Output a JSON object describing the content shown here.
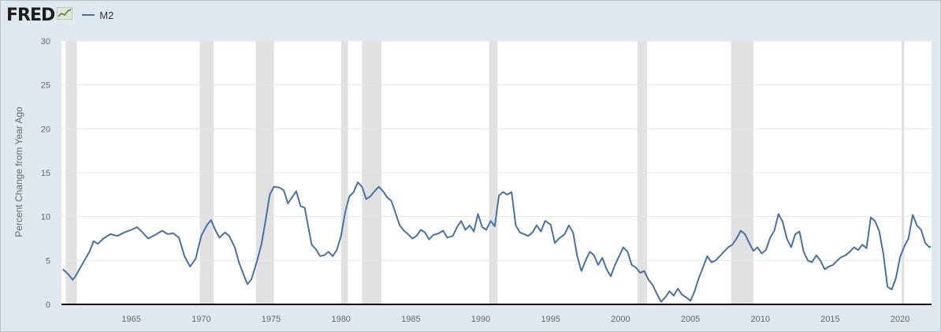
{
  "brand": {
    "logo_text": "FRED"
  },
  "legend": {
    "label": "M2",
    "icon": "trend-chart-icon"
  },
  "colors": {
    "line": "#4572a7",
    "recession": "#e1e1e1",
    "background": "#e1e9f0",
    "plot": "#ffffff"
  },
  "chart_data": {
    "type": "line",
    "title": "",
    "xlabel": "",
    "ylabel": "Percent Change from Year Ago",
    "xlim": [
      1960.0,
      2022.25
    ],
    "ylim": [
      0,
      30
    ],
    "yticks": [
      0,
      5,
      10,
      15,
      20,
      25,
      30
    ],
    "xticks": [
      1965,
      1970,
      1975,
      1980,
      1985,
      1990,
      1995,
      2000,
      2005,
      2010,
      2015,
      2020
    ],
    "grid": "horizontal",
    "legend_position": "top-left",
    "recessions": [
      [
        1960.3,
        1961.1
      ],
      [
        1969.9,
        1970.9
      ],
      [
        1973.9,
        1975.2
      ],
      [
        1980.0,
        1980.5
      ],
      [
        1981.5,
        1982.9
      ],
      [
        1990.6,
        1991.2
      ],
      [
        2001.2,
        2001.9
      ],
      [
        2007.9,
        2009.5
      ],
      [
        2020.1,
        2020.3
      ]
    ],
    "series": [
      {
        "name": "M2",
        "points": [
          [
            1960.1,
            4.0
          ],
          [
            1960.5,
            3.4
          ],
          [
            1960.8,
            2.8
          ],
          [
            1961.0,
            3.2
          ],
          [
            1961.5,
            4.6
          ],
          [
            1962.0,
            6.0
          ],
          [
            1962.3,
            7.2
          ],
          [
            1962.6,
            6.9
          ],
          [
            1963.0,
            7.5
          ],
          [
            1963.5,
            8.0
          ],
          [
            1964.0,
            7.8
          ],
          [
            1964.5,
            8.2
          ],
          [
            1965.0,
            8.5
          ],
          [
            1965.4,
            8.8
          ],
          [
            1965.8,
            8.2
          ],
          [
            1966.2,
            7.5
          ],
          [
            1966.8,
            8.0
          ],
          [
            1967.2,
            8.4
          ],
          [
            1967.6,
            8.0
          ],
          [
            1968.0,
            8.1
          ],
          [
            1968.4,
            7.6
          ],
          [
            1968.8,
            5.5
          ],
          [
            1969.2,
            4.3
          ],
          [
            1969.6,
            5.2
          ],
          [
            1970.0,
            7.8
          ],
          [
            1970.4,
            9.0
          ],
          [
            1970.7,
            9.6
          ],
          [
            1971.0,
            8.5
          ],
          [
            1971.3,
            7.6
          ],
          [
            1971.7,
            8.2
          ],
          [
            1972.0,
            7.8
          ],
          [
            1972.4,
            6.5
          ],
          [
            1972.7,
            4.8
          ],
          [
            1973.0,
            3.5
          ],
          [
            1973.3,
            2.3
          ],
          [
            1973.6,
            2.9
          ],
          [
            1974.0,
            5.0
          ],
          [
            1974.3,
            6.8
          ],
          [
            1974.6,
            9.5
          ],
          [
            1974.9,
            12.5
          ],
          [
            1975.2,
            13.4
          ],
          [
            1975.6,
            13.3
          ],
          [
            1975.9,
            13.0
          ],
          [
            1976.2,
            11.5
          ],
          [
            1976.5,
            12.2
          ],
          [
            1976.8,
            12.9
          ],
          [
            1977.1,
            11.2
          ],
          [
            1977.4,
            11.0
          ],
          [
            1977.7,
            8.5
          ],
          [
            1977.9,
            6.8
          ],
          [
            1978.2,
            6.3
          ],
          [
            1978.5,
            5.5
          ],
          [
            1978.8,
            5.6
          ],
          [
            1979.1,
            6.0
          ],
          [
            1979.4,
            5.5
          ],
          [
            1979.7,
            6.2
          ],
          [
            1980.0,
            7.8
          ],
          [
            1980.3,
            10.5
          ],
          [
            1980.6,
            12.3
          ],
          [
            1980.9,
            12.8
          ],
          [
            1981.2,
            13.9
          ],
          [
            1981.5,
            13.4
          ],
          [
            1981.8,
            12.0
          ],
          [
            1982.1,
            12.3
          ],
          [
            1982.4,
            12.9
          ],
          [
            1982.7,
            13.4
          ],
          [
            1983.0,
            12.9
          ],
          [
            1983.3,
            12.2
          ],
          [
            1983.6,
            11.8
          ],
          [
            1983.9,
            10.4
          ],
          [
            1984.2,
            9.0
          ],
          [
            1984.5,
            8.4
          ],
          [
            1984.8,
            8.0
          ],
          [
            1985.1,
            7.5
          ],
          [
            1985.4,
            7.8
          ],
          [
            1985.7,
            8.5
          ],
          [
            1986.0,
            8.2
          ],
          [
            1986.3,
            7.4
          ],
          [
            1986.6,
            7.9
          ],
          [
            1987.0,
            8.1
          ],
          [
            1987.3,
            8.4
          ],
          [
            1987.6,
            7.6
          ],
          [
            1988.0,
            7.8
          ],
          [
            1988.3,
            8.8
          ],
          [
            1988.6,
            9.5
          ],
          [
            1988.9,
            8.5
          ],
          [
            1989.2,
            9.0
          ],
          [
            1989.5,
            8.3
          ],
          [
            1989.8,
            10.3
          ],
          [
            1990.1,
            8.8
          ],
          [
            1990.4,
            8.5
          ],
          [
            1990.7,
            9.5
          ],
          [
            1991.0,
            8.9
          ],
          [
            1991.3,
            12.4
          ],
          [
            1991.6,
            12.8
          ],
          [
            1991.9,
            12.5
          ],
          [
            1992.2,
            12.8
          ],
          [
            1992.5,
            9.0
          ],
          [
            1992.8,
            8.2
          ],
          [
            1993.1,
            8.0
          ],
          [
            1993.4,
            7.8
          ],
          [
            1993.7,
            8.2
          ],
          [
            1994.0,
            9.0
          ],
          [
            1994.3,
            8.3
          ],
          [
            1994.6,
            9.5
          ],
          [
            1995.0,
            9.1
          ],
          [
            1995.3,
            7.0
          ],
          [
            1995.6,
            7.5
          ],
          [
            1996.0,
            8.0
          ],
          [
            1996.3,
            9.0
          ],
          [
            1996.6,
            8.2
          ],
          [
            1996.9,
            5.5
          ],
          [
            1997.2,
            3.8
          ],
          [
            1997.5,
            5.0
          ],
          [
            1997.8,
            6.0
          ],
          [
            1998.1,
            5.6
          ],
          [
            1998.4,
            4.5
          ],
          [
            1998.7,
            5.3
          ],
          [
            1999.0,
            4.0
          ],
          [
            1999.3,
            3.2
          ],
          [
            1999.6,
            4.5
          ],
          [
            1999.9,
            5.5
          ],
          [
            2000.2,
            6.5
          ],
          [
            2000.5,
            6.0
          ],
          [
            2000.8,
            4.5
          ],
          [
            2001.1,
            4.2
          ],
          [
            2001.4,
            3.6
          ],
          [
            2001.7,
            3.8
          ],
          [
            2002.0,
            2.8
          ],
          [
            2002.3,
            2.2
          ],
          [
            2002.6,
            1.2
          ],
          [
            2002.9,
            0.3
          ],
          [
            2003.2,
            0.8
          ],
          [
            2003.5,
            1.5
          ],
          [
            2003.8,
            1.0
          ],
          [
            2004.1,
            1.8
          ],
          [
            2004.4,
            1.1
          ],
          [
            2004.7,
            0.8
          ],
          [
            2005.0,
            0.4
          ],
          [
            2005.3,
            1.5
          ],
          [
            2005.6,
            3.0
          ],
          [
            2005.9,
            4.2
          ],
          [
            2006.2,
            5.5
          ],
          [
            2006.5,
            4.8
          ],
          [
            2006.8,
            5.0
          ],
          [
            2007.1,
            5.5
          ],
          [
            2007.4,
            6.0
          ],
          [
            2007.7,
            6.5
          ],
          [
            2008.0,
            6.8
          ],
          [
            2008.3,
            7.5
          ],
          [
            2008.6,
            8.4
          ],
          [
            2008.9,
            8.0
          ],
          [
            2009.2,
            7.0
          ],
          [
            2009.5,
            6.1
          ],
          [
            2009.8,
            6.5
          ],
          [
            2010.1,
            5.8
          ],
          [
            2010.4,
            6.2
          ],
          [
            2010.7,
            7.6
          ],
          [
            2011.0,
            8.4
          ],
          [
            2011.3,
            10.3
          ],
          [
            2011.6,
            9.4
          ],
          [
            2011.9,
            7.5
          ],
          [
            2012.2,
            6.5
          ],
          [
            2012.5,
            8.0
          ],
          [
            2012.8,
            8.3
          ],
          [
            2013.1,
            6.0
          ],
          [
            2013.4,
            5.0
          ],
          [
            2013.7,
            4.8
          ],
          [
            2014.0,
            5.6
          ],
          [
            2014.3,
            5.0
          ],
          [
            2014.6,
            4.0
          ],
          [
            2014.9,
            4.3
          ],
          [
            2015.2,
            4.5
          ],
          [
            2015.5,
            5.0
          ],
          [
            2015.8,
            5.4
          ],
          [
            2016.1,
            5.6
          ],
          [
            2016.4,
            6.0
          ],
          [
            2016.7,
            6.5
          ],
          [
            2017.0,
            6.2
          ],
          [
            2017.3,
            6.8
          ],
          [
            2017.6,
            6.4
          ],
          [
            2017.9,
            9.9
          ],
          [
            2018.2,
            9.5
          ],
          [
            2018.5,
            8.4
          ],
          [
            2018.8,
            5.8
          ],
          [
            2019.1,
            2.0
          ],
          [
            2019.4,
            1.7
          ],
          [
            2019.7,
            3.0
          ],
          [
            2020.0,
            5.4
          ],
          [
            2020.3,
            6.6
          ],
          [
            2020.6,
            7.5
          ],
          [
            2020.9,
            10.2
          ],
          [
            2021.2,
            9.0
          ],
          [
            2021.5,
            8.5
          ],
          [
            2021.8,
            7.0
          ],
          [
            2022.1,
            6.5
          ],
          [
            2022.2,
            6.6
          ]
        ]
      }
    ]
  }
}
